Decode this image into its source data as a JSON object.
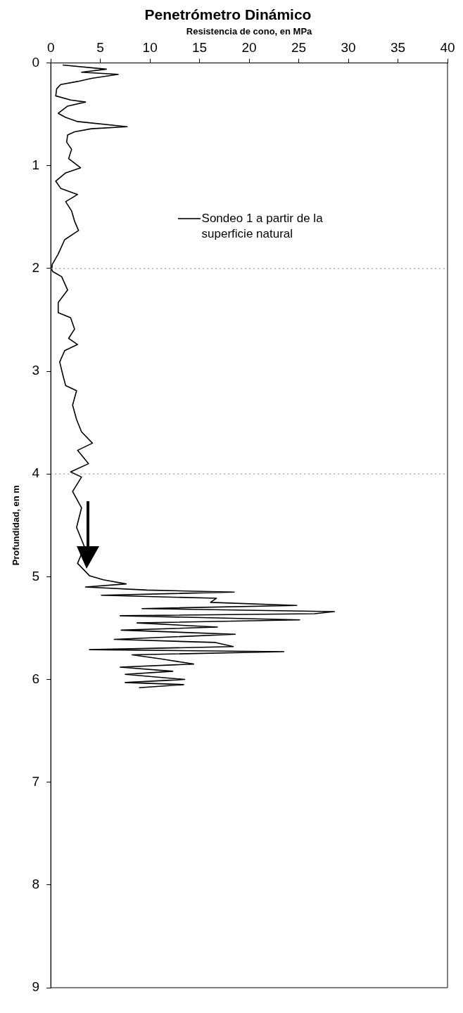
{
  "chart_data": {
    "type": "line",
    "title": "Penetrómetro Dinámico",
    "xlabel": "Resistencia de cono, en MPa",
    "ylabel": "Profundidad, en m",
    "xlim": [
      0,
      40
    ],
    "xticks": [
      0,
      5,
      10,
      15,
      20,
      25,
      30,
      35,
      40
    ],
    "ylim": [
      9,
      0
    ],
    "yticks": [
      0,
      1,
      2,
      3,
      4,
      5,
      6,
      7,
      8,
      9
    ],
    "legend": "top right",
    "ref_lines": [
      {
        "axis": "y",
        "value": 2,
        "color": "#aaaaaa",
        "line_style": "dotted"
      },
      {
        "axis": "y",
        "value": 4,
        "color": "#aaaaaa",
        "line_style": "dotted"
      }
    ],
    "series": [
      {
        "name": "Sondeo 1 a partir de la superficie natural",
        "color": "#000000",
        "x": [
          1.2,
          5.6,
          3.1,
          6.8,
          4.1,
          2.7,
          1.0,
          0.6,
          0.5,
          2.0,
          3.5,
          1.7,
          0.75,
          1.5,
          2.7,
          7.7,
          4.1,
          2.4,
          1.7,
          1.6,
          2.1,
          1.8,
          3.0,
          1.5,
          0.5,
          1.0,
          2.7,
          1.5,
          2.1,
          2.4,
          2.8,
          1.4,
          0.75,
          0.15,
          0.1,
          0.2,
          1.1,
          1.7,
          0.75,
          0.75,
          2.0,
          2.4,
          1.8,
          2.7,
          1.4,
          0.9,
          1.2,
          1.5,
          2.6,
          2.2,
          2.6,
          3.1,
          4.2,
          2.7,
          3.8,
          2.0,
          3.1,
          2.2,
          3.1,
          2.6,
          3.4,
          2.7,
          3.9,
          5.3,
          7.6,
          3.5,
          9.7,
          18.5,
          5.1,
          16.7,
          16.1,
          24.8,
          9.2,
          28.6,
          26.6,
          7.0,
          25.1,
          8.7,
          16.8,
          7.1,
          18.6,
          6.4,
          16.6,
          18.4,
          3.9,
          23.5,
          8.2,
          11.1,
          14.4,
          7.0,
          12.3,
          7.5,
          13.5,
          7.5,
          13.4,
          8.9
        ],
        "values": [
          0.02,
          0.06,
          0.09,
          0.11,
          0.15,
          0.18,
          0.21,
          0.25,
          0.32,
          0.36,
          0.38,
          0.42,
          0.49,
          0.53,
          0.57,
          0.62,
          0.64,
          0.67,
          0.7,
          0.77,
          0.84,
          0.93,
          1.02,
          1.07,
          1.15,
          1.22,
          1.28,
          1.35,
          1.44,
          1.54,
          1.63,
          1.72,
          1.86,
          1.96,
          2.01,
          2.03,
          2.08,
          2.21,
          2.33,
          2.43,
          2.48,
          2.59,
          2.68,
          2.74,
          2.8,
          2.91,
          3.03,
          3.14,
          3.19,
          3.33,
          3.47,
          3.59,
          3.7,
          3.77,
          3.9,
          3.98,
          4.03,
          4.17,
          4.33,
          4.52,
          4.71,
          4.87,
          4.99,
          5.03,
          5.07,
          5.1,
          5.13,
          5.15,
          5.18,
          5.21,
          5.25,
          5.28,
          5.31,
          5.34,
          5.36,
          5.38,
          5.42,
          5.45,
          5.49,
          5.52,
          5.56,
          5.61,
          5.64,
          5.68,
          5.71,
          5.73,
          5.76,
          5.8,
          5.85,
          5.88,
          5.92,
          5.95,
          6.0,
          6.03,
          6.05,
          6.08
        ]
      }
    ]
  }
}
